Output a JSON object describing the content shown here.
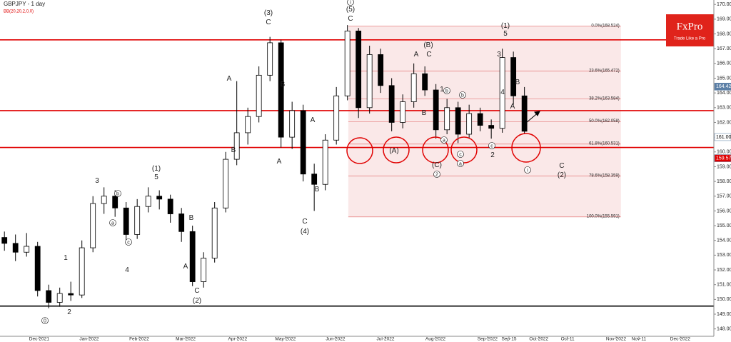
{
  "chart_data": {
    "type": "candlestick",
    "title": "GBPJPY - 1 day",
    "subtitle": "BB(20,20,2,0,0)",
    "x": [
      2,
      7,
      12,
      17,
      22,
      27,
      32,
      37,
      42,
      47,
      52,
      57,
      62,
      67,
      72,
      77,
      82,
      87,
      92,
      97,
      102,
      107,
      112,
      117,
      122,
      127,
      132,
      137,
      142,
      147,
      152,
      157,
      162,
      167,
      172,
      177,
      182,
      187,
      192,
      197,
      202,
      207,
      212,
      217,
      222,
      227,
      232,
      237
    ],
    "open": [
      154.2,
      153.8,
      153.2,
      153.6,
      150.6,
      149.8,
      150.4,
      150.3,
      153.5,
      156.5,
      157.0,
      156.2,
      154.4,
      156.3,
      157.0,
      156.8,
      155.8,
      154.6,
      151.2,
      152.8,
      156.2,
      159.5,
      161.3,
      162.4,
      165.2,
      167.4,
      161.0,
      162.8,
      158.5,
      157.8,
      160.8,
      163.8,
      168.2,
      163.0,
      166.6,
      164.5,
      162.0,
      163.4,
      165.3,
      164.2,
      161.5,
      163.0,
      161.2,
      162.6,
      161.8,
      161.6,
      166.4,
      163.8
    ],
    "high": [
      154.6,
      154.4,
      154.5,
      153.9,
      151.0,
      150.8,
      151.2,
      154.0,
      157.0,
      157.6,
      157.4,
      156.6,
      156.8,
      157.6,
      157.4,
      157.1,
      156.2,
      155.0,
      153.2,
      156.6,
      160.0,
      164.8,
      163.0,
      165.8,
      167.8,
      167.6,
      163.4,
      163.2,
      159.2,
      161.2,
      164.4,
      168.6,
      168.4,
      167.2,
      167.0,
      165.0,
      163.9,
      166.0,
      165.8,
      164.6,
      163.6,
      163.4,
      163.2,
      163.0,
      162.2,
      167.0,
      166.8,
      164.4
    ],
    "low": [
      153.3,
      152.6,
      152.9,
      150.2,
      149.4,
      149.5,
      149.9,
      150.1,
      153.2,
      155.8,
      155.6,
      153.8,
      154.1,
      155.9,
      156.1,
      155.2,
      153.9,
      150.9,
      150.8,
      152.5,
      155.9,
      159.1,
      160.5,
      162.0,
      164.8,
      160.3,
      160.2,
      158.0,
      156.0,
      157.4,
      160.5,
      163.5,
      162.3,
      162.6,
      164.0,
      161.4,
      161.6,
      163.0,
      163.8,
      160.9,
      161.2,
      160.6,
      160.9,
      161.4,
      160.9,
      161.3,
      163.2,
      161.2
    ],
    "close": [
      153.8,
      153.2,
      153.6,
      150.6,
      149.8,
      150.4,
      150.3,
      153.5,
      156.5,
      157.0,
      156.2,
      154.4,
      156.3,
      157.0,
      156.8,
      155.8,
      154.6,
      151.2,
      152.8,
      156.2,
      159.5,
      161.3,
      162.4,
      165.2,
      167.4,
      161.0,
      162.8,
      158.5,
      157.8,
      160.8,
      163.8,
      168.2,
      163.0,
      166.6,
      164.5,
      162.0,
      163.4,
      165.3,
      164.2,
      161.5,
      163.0,
      161.2,
      162.6,
      161.8,
      161.6,
      166.4,
      163.8,
      161.4
    ],
    "xlim": [
      0,
      322.6
    ],
    "xticks": [
      {
        "value": 17.7,
        "label": "Dec-2021"
      },
      {
        "value": 40.3,
        "label": "Jan-2022"
      },
      {
        "value": 62.9,
        "label": "Feb-2022"
      },
      {
        "value": 83.9,
        "label": "Mar-2022"
      },
      {
        "value": 107.4,
        "label": "Apr-2022"
      },
      {
        "value": 129,
        "label": "May-2022"
      },
      {
        "value": 151.6,
        "label": "Jun-2022"
      },
      {
        "value": 174.2,
        "label": "Jul-2022"
      },
      {
        "value": 196.8,
        "label": "Aug-2022"
      },
      {
        "value": 220.3,
        "label": "Sep-2022"
      },
      {
        "value": 230,
        "label": "Sep-15"
      },
      {
        "value": 243.5,
        "label": "Oct-2022"
      },
      {
        "value": 256.5,
        "label": "Oct-11"
      },
      {
        "value": 278.4,
        "label": "Nov-2022"
      },
      {
        "value": 288.7,
        "label": "Nov-11"
      },
      {
        "value": 307.4,
        "label": "Dec-2022"
      }
    ],
    "ylim": [
      147.5,
      170.3
    ],
    "yticks": [
      {
        "value": 148,
        "label": "148.000"
      },
      {
        "value": 149,
        "label": "149.000"
      },
      {
        "value": 150,
        "label": "150.000"
      },
      {
        "value": 151,
        "label": "151.000"
      },
      {
        "value": 152,
        "label": "152.000"
      },
      {
        "value": 153,
        "label": "153.000"
      },
      {
        "value": 154,
        "label": "154.000"
      },
      {
        "value": 155,
        "label": "155.000"
      },
      {
        "value": 156,
        "label": "156.000"
      },
      {
        "value": 157,
        "label": "157.000"
      },
      {
        "value": 158,
        "label": "158.000"
      },
      {
        "value": 159,
        "label": "159.000"
      },
      {
        "value": 160,
        "label": "160.000"
      },
      {
        "value": 161,
        "label": "161.000"
      },
      {
        "value": 162,
        "label": "162.000"
      },
      {
        "value": 163,
        "label": "163.000"
      },
      {
        "value": 164,
        "label": "164.000"
      },
      {
        "value": 165,
        "label": "165.000"
      },
      {
        "value": 166,
        "label": "166.000"
      },
      {
        "value": 167,
        "label": "167.000"
      },
      {
        "value": 168,
        "label": "168.000"
      },
      {
        "value": 169,
        "label": "169.000"
      },
      {
        "value": 170,
        "label": "170.000"
      }
    ],
    "levels": [
      {
        "value": 167.6,
        "color": "#e00000"
      },
      {
        "value": 162.8,
        "color": "#e00000"
      },
      {
        "value": 160.3,
        "color": "#e00000"
      },
      {
        "value": 149.55,
        "color": "#000000"
      }
    ],
    "fib": {
      "x": [
        157.4,
        280.6
      ],
      "levels": [
        {
          "value": 168.524,
          "label": "0.0%(168.524)"
        },
        {
          "value": 165.472,
          "label": "23.6%(165.472)"
        },
        {
          "value": 163.584,
          "label": "38.2%(163.584)"
        },
        {
          "value": 162.058,
          "label": "50.0%(162.058)"
        },
        {
          "value": 160.531,
          "label": "61.8%(160.531)"
        },
        {
          "value": 158.359,
          "label": "78.6%(158.359)"
        },
        {
          "value": 155.591,
          "label": "100.0%(155.591)"
        }
      ]
    },
    "price_tags": [
      {
        "value": 164.428,
        "color": "#5b7fa6"
      },
      {
        "value": 161.009,
        "color": "#ffffff"
      },
      {
        "value": 159.574,
        "color": "#e00000"
      }
    ],
    "wave_labels": [
      "0",
      "2",
      "1",
      "3",
      "b",
      "a",
      "c",
      "4",
      "(1)",
      "5",
      "B",
      "A",
      "C",
      "(2)",
      "A",
      "B",
      "(3)",
      "C",
      "B",
      "A",
      "A",
      "B",
      "C",
      "(4)",
      "(5)",
      "C",
      "i",
      "(B)",
      "A",
      "C",
      "B",
      "1",
      "b",
      "(A)",
      "a",
      "c",
      "a",
      "(C)",
      "2",
      "b",
      "c",
      "2",
      "(1)",
      "5",
      "3",
      "4",
      "B",
      "A",
      "i",
      "C",
      "(2)"
    ],
    "logo": {
      "name": "FxPro",
      "tagline": "Trade Like a Pro"
    }
  }
}
